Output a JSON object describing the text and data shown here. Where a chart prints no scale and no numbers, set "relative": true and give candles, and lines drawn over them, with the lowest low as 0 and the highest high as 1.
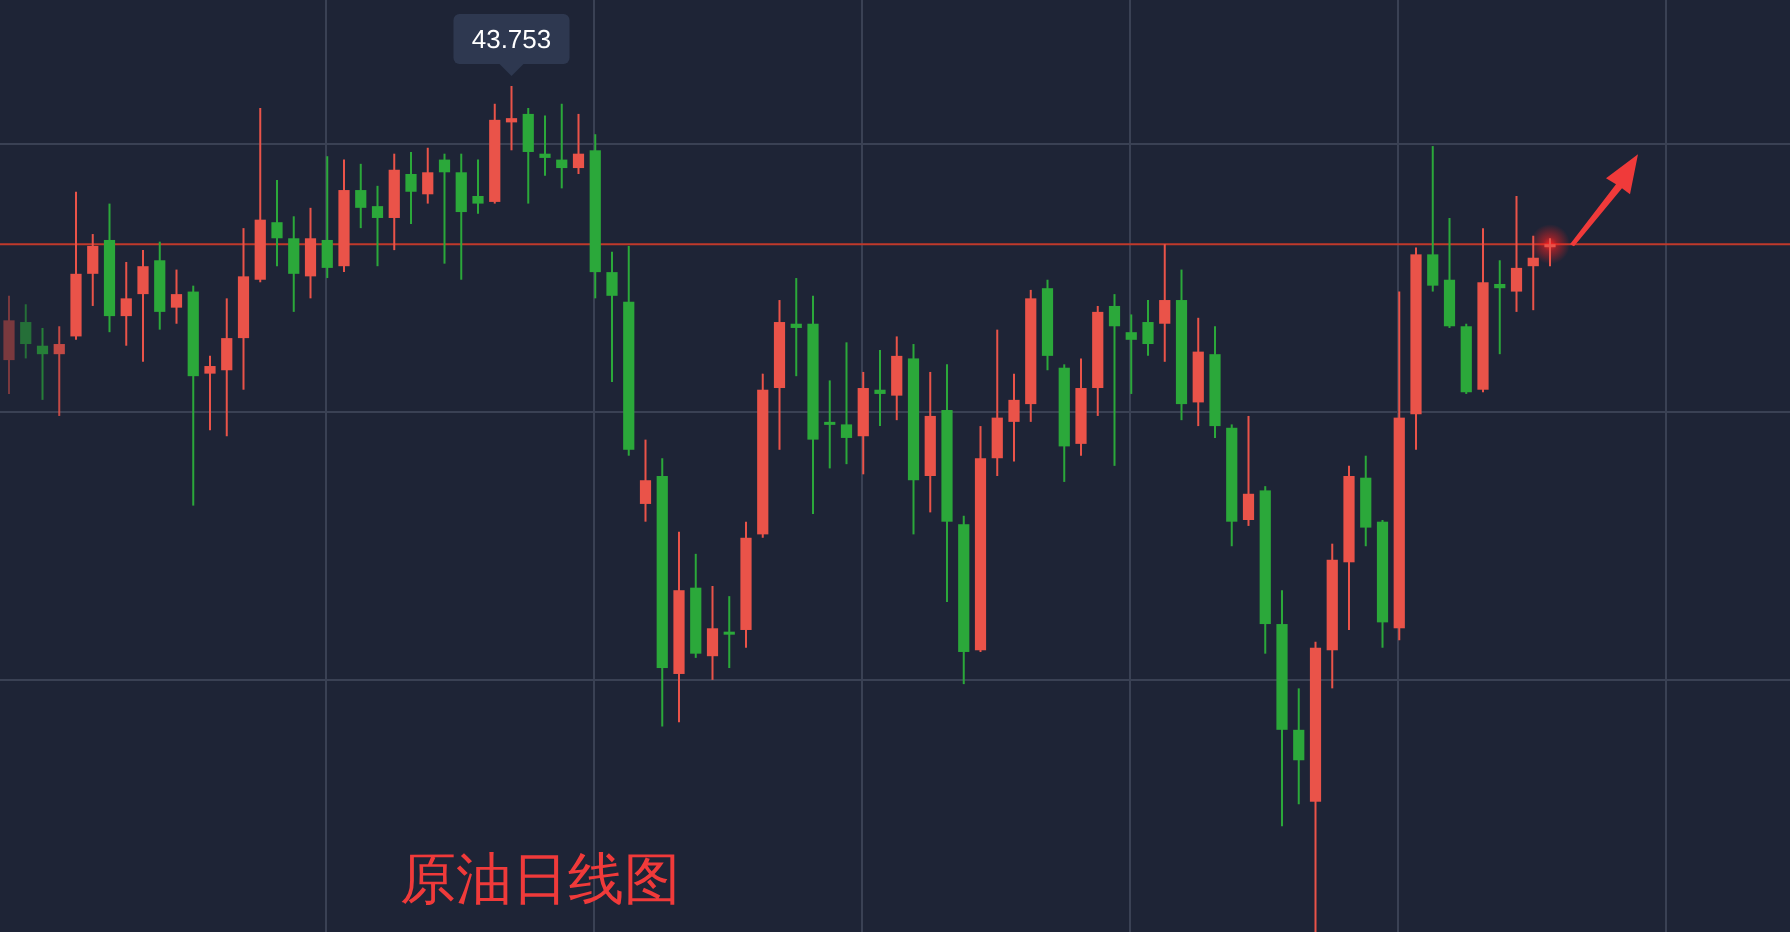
{
  "chart_data": {
    "type": "candlestick",
    "title": "原油日线图",
    "relative": true,
    "grid": true,
    "annotations": [
      "43.753"
    ],
    "ref_lines": [
      {
        "axis": "y",
        "value": 0.813,
        "color": "#c0392b"
      }
    ],
    "categories": [
      null,
      null,
      null,
      null,
      null,
      null,
      null,
      null,
      null,
      null,
      null,
      null,
      null,
      null,
      null,
      null,
      null,
      null,
      null,
      null,
      null,
      null,
      null,
      null,
      null,
      null,
      null,
      null,
      null,
      null,
      null,
      null,
      null,
      null,
      null,
      null,
      null,
      null,
      null,
      null,
      null,
      null,
      null,
      null,
      null,
      null,
      null,
      null,
      null,
      null,
      null,
      null,
      null,
      null,
      null,
      null,
      null,
      null,
      null,
      null,
      null,
      null,
      null,
      null,
      null,
      null,
      null,
      null,
      null,
      null,
      null,
      null,
      null,
      null,
      null,
      null,
      null,
      null,
      null,
      null,
      null,
      null,
      null,
      null,
      null,
      null,
      null,
      null,
      null,
      null,
      null,
      null,
      null
    ],
    "ohlc": [
      [
        0.676,
        0.752,
        0.636,
        0.723
      ],
      [
        0.721,
        0.742,
        0.678,
        0.695
      ],
      [
        0.693,
        0.714,
        0.629,
        0.683
      ],
      [
        0.683,
        0.716,
        0.61,
        0.695
      ],
      [
        0.704,
        0.875,
        0.7,
        0.778
      ],
      [
        0.778,
        0.825,
        0.74,
        0.811
      ],
      [
        0.818,
        0.861,
        0.709,
        0.728
      ],
      [
        0.728,
        0.792,
        0.693,
        0.749
      ],
      [
        0.754,
        0.806,
        0.674,
        0.787
      ],
      [
        0.794,
        0.816,
        0.712,
        0.733
      ],
      [
        0.738,
        0.783,
        0.719,
        0.754
      ],
      [
        0.757,
        0.764,
        0.504,
        0.657
      ],
      [
        0.66,
        0.681,
        0.593,
        0.669
      ],
      [
        0.664,
        0.749,
        0.586,
        0.702
      ],
      [
        0.702,
        0.832,
        0.641,
        0.775
      ],
      [
        0.771,
        0.974,
        0.768,
        0.842
      ],
      [
        0.839,
        0.889,
        0.787,
        0.82
      ],
      [
        0.82,
        0.846,
        0.733,
        0.778
      ],
      [
        0.775,
        0.856,
        0.749,
        0.82
      ],
      [
        0.818,
        0.917,
        0.773,
        0.785
      ],
      [
        0.787,
        0.913,
        0.78,
        0.877
      ],
      [
        0.877,
        0.908,
        0.832,
        0.856
      ],
      [
        0.858,
        0.882,
        0.787,
        0.844
      ],
      [
        0.844,
        0.92,
        0.806,
        0.901
      ],
      [
        0.896,
        0.922,
        0.837,
        0.875
      ],
      [
        0.872,
        0.927,
        0.861,
        0.898
      ],
      [
        0.913,
        0.92,
        0.79,
        0.898
      ],
      [
        0.898,
        0.92,
        0.771,
        0.851
      ],
      [
        0.87,
        0.913,
        0.849,
        0.861
      ],
      [
        0.863,
        0.979,
        0.861,
        0.96
      ],
      [
        0.957,
        1,
        0.924,
        0.962
      ],
      [
        0.967,
        0.974,
        0.861,
        0.922
      ],
      [
        0.92,
        0.965,
        0.894,
        0.915
      ],
      [
        0.913,
        0.979,
        0.879,
        0.903
      ],
      [
        0.903,
        0.967,
        0.896,
        0.92
      ],
      [
        0.924,
        0.943,
        0.749,
        0.78
      ],
      [
        0.78,
        0.804,
        0.65,
        0.752
      ],
      [
        0.745,
        0.811,
        0.563,
        0.57
      ],
      [
        0.506,
        0.582,
        0.485,
        0.534
      ],
      [
        0.539,
        0.56,
        0.243,
        0.312
      ],
      [
        0.305,
        0.473,
        0.248,
        0.404
      ],
      [
        0.407,
        0.447,
        0.324,
        0.329
      ],
      [
        0.326,
        0.409,
        0.298,
        0.359
      ],
      [
        0.355,
        0.397,
        0.312,
        0.352
      ],
      [
        0.357,
        0.485,
        0.336,
        0.466
      ],
      [
        0.47,
        0.66,
        0.466,
        0.641
      ],
      [
        0.643,
        0.747,
        0.57,
        0.721
      ],
      [
        0.719,
        0.773,
        0.657,
        0.714
      ],
      [
        0.719,
        0.752,
        0.494,
        0.582
      ],
      [
        0.603,
        0.652,
        0.548,
        0.6
      ],
      [
        0.6,
        0.697,
        0.553,
        0.584
      ],
      [
        0.586,
        0.662,
        0.541,
        0.643
      ],
      [
        0.641,
        0.688,
        0.598,
        0.636
      ],
      [
        0.634,
        0.704,
        0.605,
        0.681
      ],
      [
        0.678,
        0.695,
        0.47,
        0.534
      ],
      [
        0.539,
        0.662,
        0.496,
        0.61
      ],
      [
        0.617,
        0.671,
        0.39,
        0.485
      ],
      [
        0.482,
        0.492,
        0.293,
        0.331
      ],
      [
        0.333,
        0.598,
        0.331,
        0.56
      ],
      [
        0.56,
        0.712,
        0.539,
        0.608
      ],
      [
        0.603,
        0.66,
        0.556,
        0.629
      ],
      [
        0.624,
        0.759,
        0.603,
        0.749
      ],
      [
        0.761,
        0.771,
        0.664,
        0.681
      ],
      [
        0.667,
        0.671,
        0.532,
        0.574
      ],
      [
        0.577,
        0.678,
        0.563,
        0.643
      ],
      [
        0.643,
        0.74,
        0.61,
        0.733
      ],
      [
        0.74,
        0.754,
        0.551,
        0.716
      ],
      [
        0.709,
        0.73,
        0.636,
        0.7
      ],
      [
        0.721,
        0.747,
        0.681,
        0.695
      ],
      [
        0.719,
        0.813,
        0.674,
        0.747
      ],
      [
        0.747,
        0.783,
        0.605,
        0.624
      ],
      [
        0.626,
        0.726,
        0.598,
        0.686
      ],
      [
        0.683,
        0.716,
        0.584,
        0.598
      ],
      [
        0.596,
        0.6,
        0.456,
        0.485
      ],
      [
        0.487,
        0.61,
        0.48,
        0.518
      ],
      [
        0.522,
        0.527,
        0.329,
        0.364
      ],
      [
        0.364,
        0.404,
        0.125,
        0.239
      ],
      [
        0.239,
        0.288,
        0.151,
        0.203
      ],
      [
        0.154,
        0.343,
        0,
        0.336
      ],
      [
        0.333,
        0.459,
        0.288,
        0.44
      ],
      [
        0.437,
        0.551,
        0.357,
        0.539
      ],
      [
        0.537,
        0.563,
        0.456,
        0.478
      ],
      [
        0.485,
        0.487,
        0.336,
        0.366
      ],
      [
        0.359,
        0.757,
        0.345,
        0.608
      ],
      [
        0.612,
        0.809,
        0.57,
        0.801
      ],
      [
        0.801,
        0.929,
        0.757,
        0.764
      ],
      [
        0.771,
        0.844,
        0.714,
        0.716
      ],
      [
        0.716,
        0.719,
        0.636,
        0.638
      ],
      [
        0.641,
        0.832,
        0.638,
        0.768
      ],
      [
        0.766,
        0.794,
        0.683,
        0.761
      ],
      [
        0.757,
        0.87,
        0.733,
        0.785
      ],
      [
        0.787,
        0.823,
        0.735,
        0.797
      ],
      [
        0.811,
        0.82,
        0.787,
        0.813
      ]
    ]
  }
}
